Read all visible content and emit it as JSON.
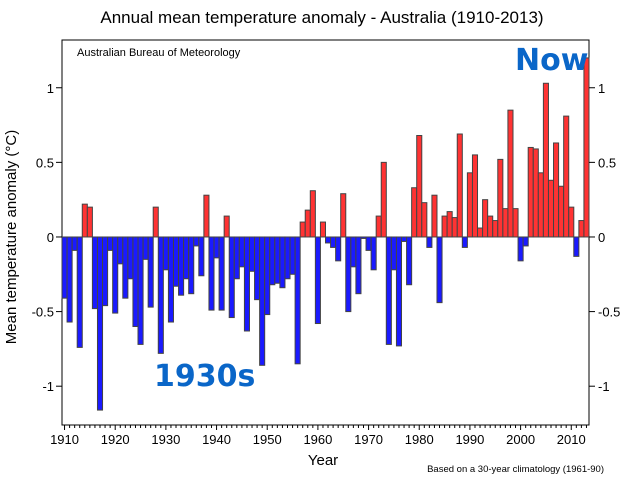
{
  "chart_data": {
    "type": "bar",
    "title": "Annual mean temperature anomaly - Australia (1910-2013)",
    "xlabel": "Year",
    "ylabel": "Mean temperature anomaly (°C)",
    "source": "Australian Bureau of Meteorology",
    "footnote": "Based on a 30-year climatology (1961-90)",
    "annotations": [
      {
        "text": "Now",
        "color": "#0a66c8"
      },
      {
        "text": "1930s",
        "color": "#0a66c8"
      }
    ],
    "xlim": [
      1909.5,
      2013.5
    ],
    "ylim": [
      -1.26,
      1.32
    ],
    "xticks": [
      1910,
      1920,
      1930,
      1940,
      1950,
      1960,
      1970,
      1980,
      1990,
      2000,
      2010
    ],
    "yticks": [
      -1,
      -0.5,
      0,
      0.5,
      1
    ],
    "ytick_labels": [
      "-1",
      "-0.5",
      "0",
      "0.5",
      "1"
    ],
    "colors": {
      "positive": "#ff3333",
      "negative": "#1a1aff",
      "outline": "#444444"
    },
    "grid": false,
    "start_year": 1910,
    "values": [
      -0.41,
      -0.57,
      -0.09,
      -0.74,
      0.22,
      0.2,
      -0.48,
      -1.16,
      -0.46,
      -0.09,
      -0.51,
      -0.18,
      -0.41,
      -0.28,
      -0.6,
      -0.72,
      -0.15,
      -0.47,
      0.2,
      -0.78,
      -0.22,
      -0.57,
      -0.33,
      -0.39,
      -0.28,
      -0.38,
      -0.06,
      -0.26,
      0.28,
      -0.49,
      -0.14,
      -0.49,
      0.14,
      -0.54,
      -0.28,
      -0.2,
      -0.63,
      -0.23,
      -0.42,
      -0.86,
      -0.52,
      -0.32,
      -0.31,
      -0.34,
      -0.28,
      -0.25,
      -0.85,
      0.1,
      0.18,
      0.31,
      -0.58,
      0.1,
      -0.04,
      -0.07,
      -0.16,
      0.29,
      -0.5,
      -0.2,
      -0.38,
      -0.01,
      -0.09,
      -0.22,
      0.14,
      0.5,
      -0.72,
      -0.22,
      -0.73,
      -0.03,
      -0.32,
      0.33,
      0.68,
      0.23,
      -0.07,
      0.28,
      -0.44,
      0.14,
      0.17,
      0.13,
      0.69,
      -0.07,
      0.43,
      0.55,
      0.06,
      0.25,
      0.14,
      0.11,
      0.52,
      0.19,
      0.85,
      0.19,
      -0.16,
      -0.06,
      0.6,
      0.59,
      0.43,
      1.03,
      0.38,
      0.63,
      0.34,
      0.81,
      0.2,
      -0.13,
      0.11,
      1.2
    ]
  }
}
